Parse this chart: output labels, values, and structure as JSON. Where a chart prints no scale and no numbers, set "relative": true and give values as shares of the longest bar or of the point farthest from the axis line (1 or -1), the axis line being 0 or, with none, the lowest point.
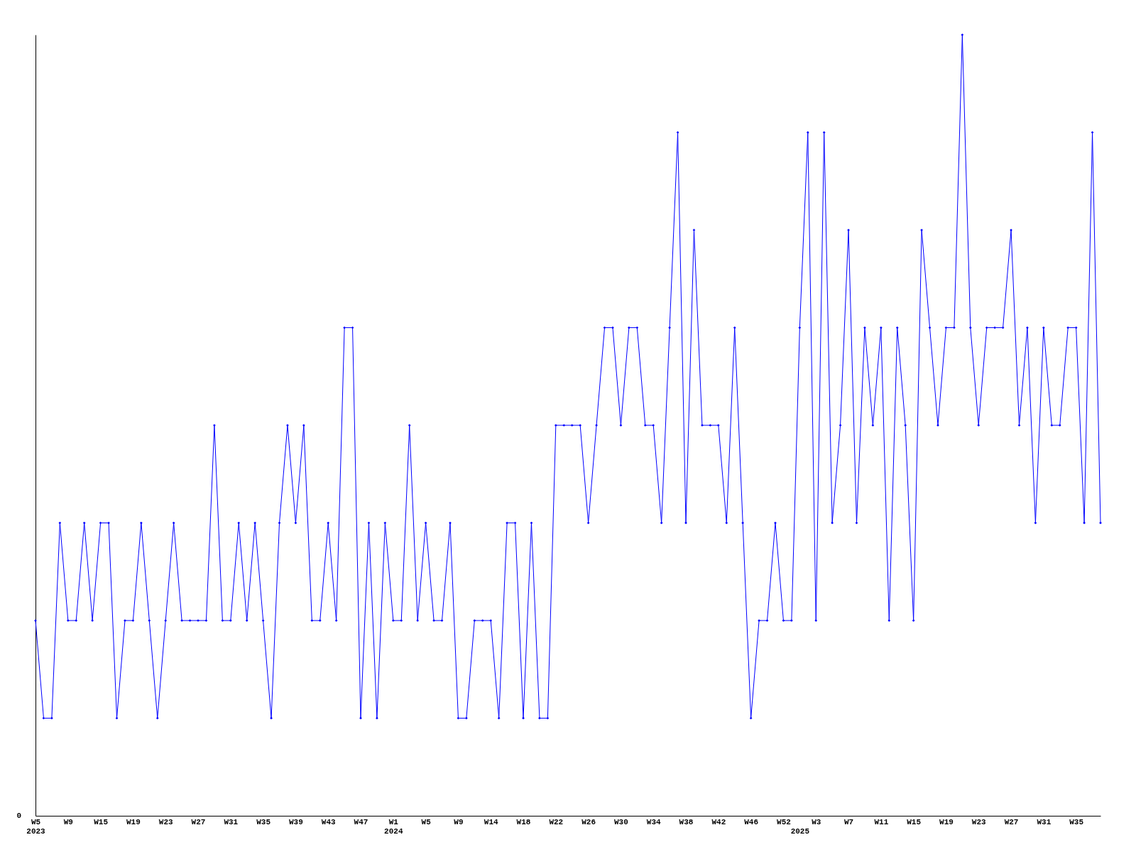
{
  "chart_data": {
    "type": "line",
    "relative": true,
    "marker": "diamond",
    "line_style": "solid",
    "grid": false,
    "categories": [
      "W5\n2023",
      null,
      null,
      null,
      "W9",
      null,
      null,
      null,
      "W15",
      null,
      null,
      null,
      "W19",
      null,
      null,
      null,
      "W23",
      null,
      null,
      null,
      "W27",
      null,
      null,
      null,
      "W31",
      null,
      null,
      null,
      "W35",
      null,
      null,
      null,
      "W39",
      null,
      null,
      null,
      "W43",
      null,
      null,
      null,
      "W47",
      null,
      null,
      null,
      "W1\n2024",
      null,
      null,
      null,
      "W5",
      null,
      null,
      null,
      "W9",
      null,
      null,
      null,
      "W14",
      null,
      null,
      null,
      "W18",
      null,
      null,
      null,
      "W22",
      null,
      null,
      null,
      "W26",
      null,
      null,
      null,
      "W30",
      null,
      null,
      null,
      "W34",
      null,
      null,
      null,
      "W38",
      null,
      null,
      null,
      "W42",
      null,
      null,
      null,
      "W46",
      null,
      null,
      null,
      "W52",
      null,
      "\n2025",
      null,
      "W3",
      null,
      null,
      null,
      "W7",
      null,
      null,
      null,
      "W11",
      null,
      null,
      null,
      "W15",
      null,
      null,
      null,
      "W19",
      null,
      null,
      null,
      "W23",
      null,
      null,
      null,
      "W27",
      null,
      null,
      null,
      "W31",
      null,
      null,
      null,
      "W35",
      null,
      null,
      null
    ],
    "series": [
      {
        "color": "#0000ff",
        "values": [
          0.25,
          0.125,
          0.125,
          0.375,
          0.25,
          0.25,
          0.375,
          0.25,
          0.375,
          0.375,
          0.125,
          0.25,
          0.25,
          0.375,
          0.25,
          0.125,
          0.25,
          0.375,
          0.25,
          0.25,
          0.25,
          0.25,
          0.5,
          0.25,
          0.25,
          0.375,
          0.25,
          0.375,
          0.25,
          0.125,
          0.375,
          0.5,
          0.375,
          0.5,
          0.25,
          0.25,
          0.375,
          0.25,
          0.625,
          0.625,
          0.125,
          0.375,
          0.125,
          0.375,
          0.25,
          0.25,
          0.5,
          0.25,
          0.375,
          0.25,
          0.25,
          0.375,
          0.125,
          0.125,
          0.25,
          0.25,
          0.25,
          0.125,
          0.375,
          0.375,
          0.125,
          0.375,
          0.125,
          0.125,
          0.5,
          0.5,
          0.5,
          0.5,
          0.375,
          0.5,
          0.625,
          0.625,
          0.5,
          0.625,
          0.625,
          0.5,
          0.5,
          0.375,
          0.625,
          0.875,
          0.375,
          0.75,
          0.5,
          0.5,
          0.5,
          0.375,
          0.625,
          0.375,
          0.125,
          0.25,
          0.25,
          0.375,
          0.25,
          0.25,
          0.625,
          0.875,
          0.25,
          0.875,
          0.375,
          0.5,
          0.75,
          0.375,
          0.625,
          0.5,
          0.625,
          0.25,
          0.625,
          0.5,
          0.25,
          0.75,
          0.625,
          0.5,
          0.625,
          0.625,
          1,
          0.625,
          0.5,
          0.625,
          0.625,
          0.625,
          0.75,
          0.5,
          0.625,
          0.375,
          0.625,
          0.5,
          0.5,
          0.625,
          0.625,
          0.375,
          0.875,
          0.375
        ]
      }
    ],
    "annotations": [
      "0"
    ]
  }
}
